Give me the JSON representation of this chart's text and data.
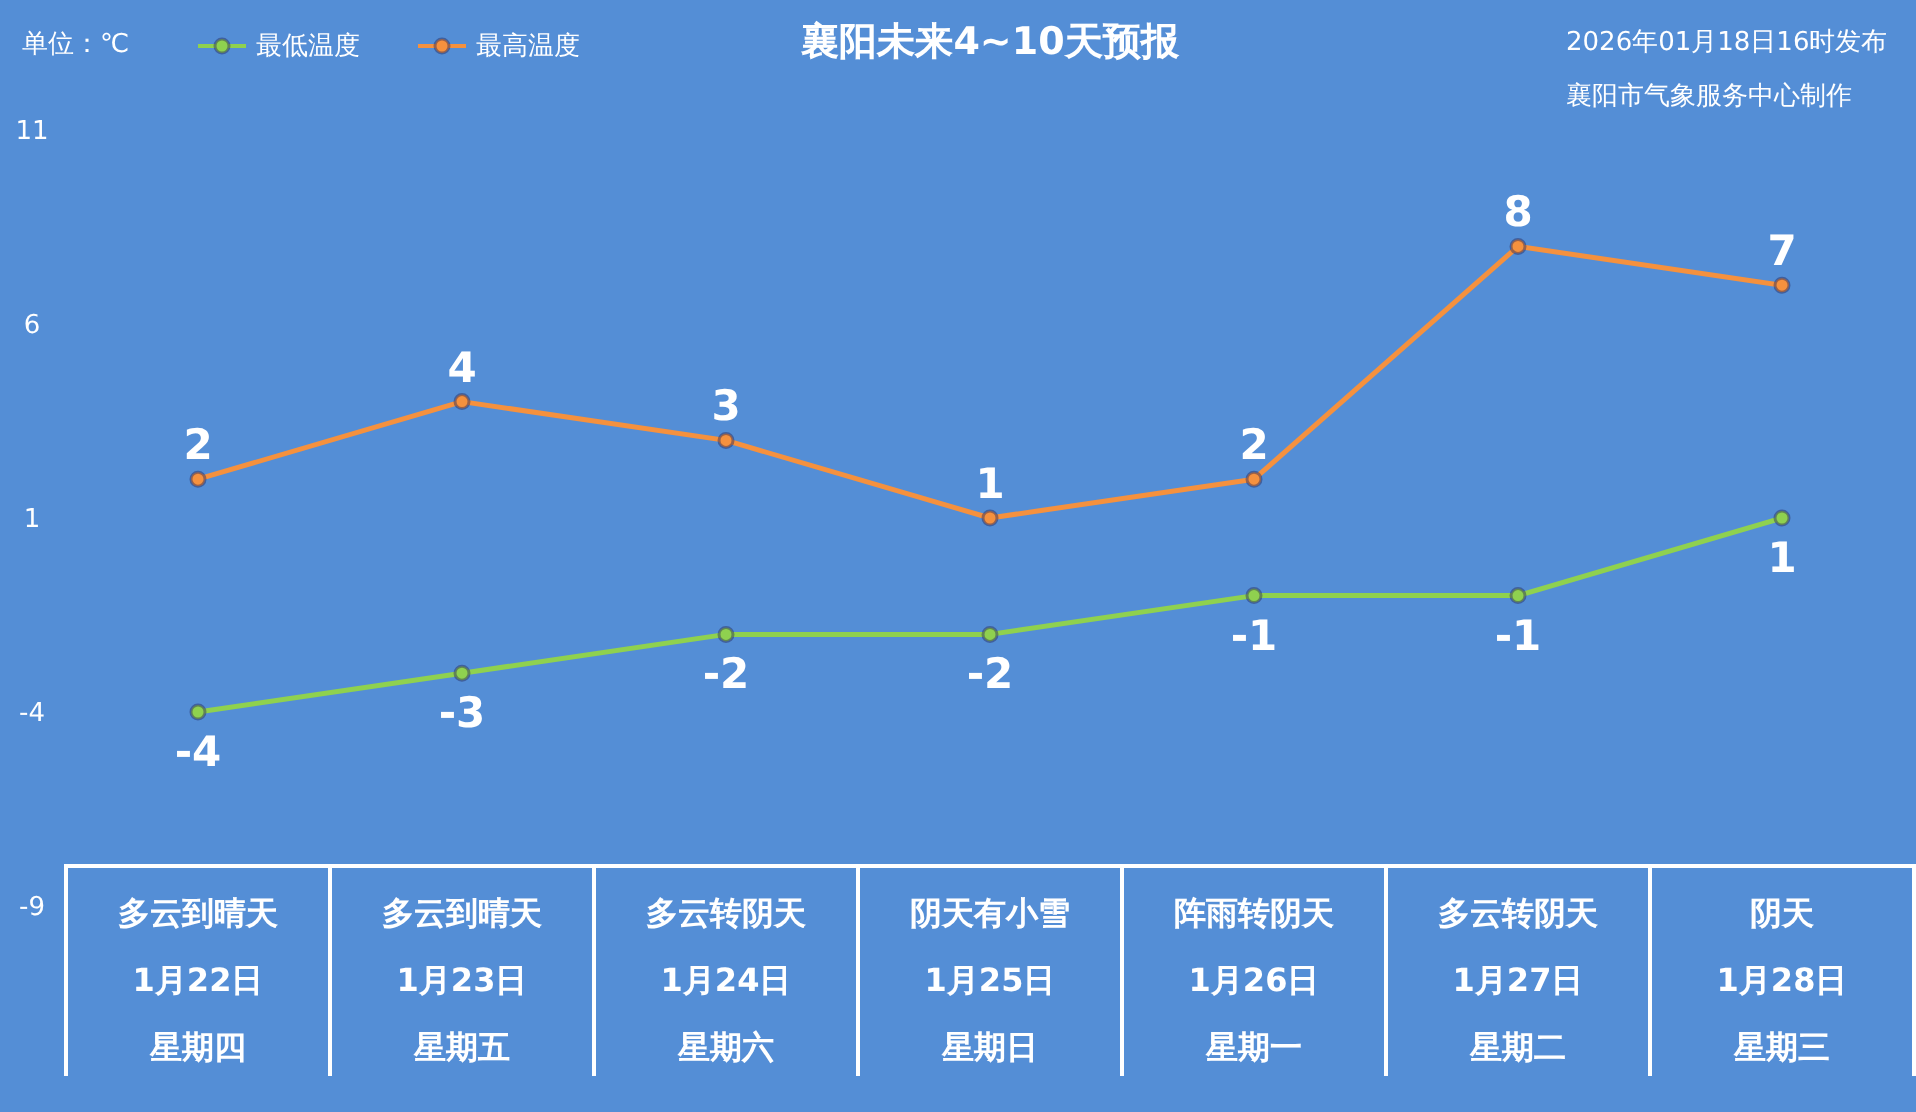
{
  "chart_data": {
    "type": "line",
    "title": "襄阳未来4~10天预报",
    "ylabel": "单位：℃",
    "annotations": [
      "2026年01月18日16时发布",
      "襄阳市气象服务中心制作"
    ],
    "categories": [
      "多云到晴天1月22日星期四",
      "多云到晴天1月23日星期五",
      "多云转阴天1月24日星期六",
      "阴天有小雪1月25日星期日",
      "阵雨转阴天1月26日星期一",
      "多云转阴天1月27日星期二",
      "阴天1月28日星期三"
    ],
    "series": [
      {
        "name": "最低温度",
        "color": "#8fd14f",
        "values": [
          -4,
          -3,
          -2,
          -2,
          -1,
          -1,
          1
        ]
      },
      {
        "name": "最高温度",
        "color": "#f5913e",
        "values": [
          2,
          4,
          3,
          1,
          2,
          8,
          7
        ]
      }
    ],
    "ylim": [
      -9,
      11
    ],
    "yticks": [
      -9,
      -4,
      1,
      6,
      11
    ],
    "legend": "top left",
    "marker": "circle",
    "line_style": "solid",
    "data_labels": true
  }
}
